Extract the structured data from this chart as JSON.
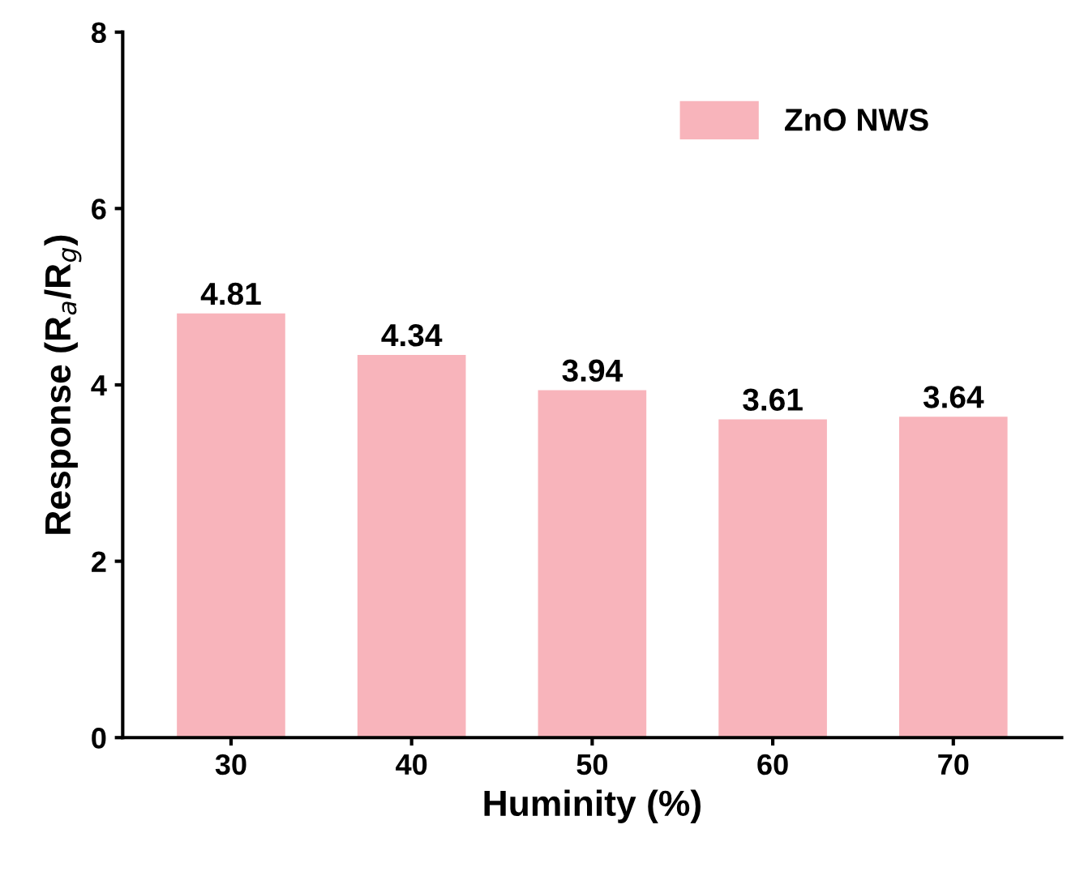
{
  "chart_data": {
    "type": "bar",
    "xlabel": "Huminity (%)",
    "ylabel": "Response (R$_{a}$/R$_{g}$)",
    "categories": [
      "30",
      "40",
      "50",
      "60",
      "70"
    ],
    "series": [
      {
        "name": "ZnO NWS",
        "color": "#f8b4bb",
        "values": [
          4.81,
          4.34,
          3.94,
          3.61,
          3.64
        ]
      }
    ],
    "ylim": [
      0,
      8
    ],
    "yticks": [
      0,
      2,
      4,
      6,
      8
    ],
    "data_labels": true,
    "legend": "top right",
    "grid": false
  }
}
